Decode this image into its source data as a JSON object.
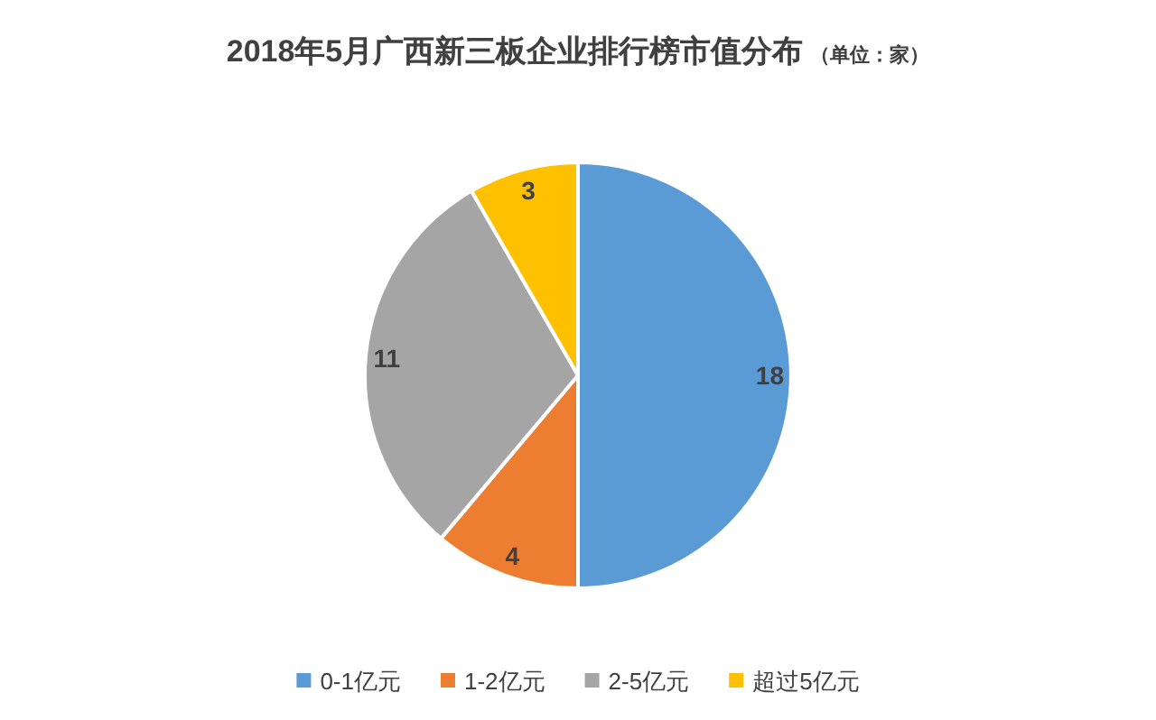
{
  "chart_data": {
    "type": "pie",
    "title": "2018年5月广西新三板企业排行榜市值分布",
    "subtitle": "（单位：家）",
    "categories": [
      "0-1亿元",
      "1-2亿元",
      "2-5亿元",
      "超过5亿元"
    ],
    "values": [
      18,
      4,
      11,
      3
    ],
    "colors": [
      "#5b9bd5",
      "#ed7d31",
      "#a5a5a5",
      "#ffc000"
    ],
    "data_labels": true,
    "legend": "bottom"
  }
}
